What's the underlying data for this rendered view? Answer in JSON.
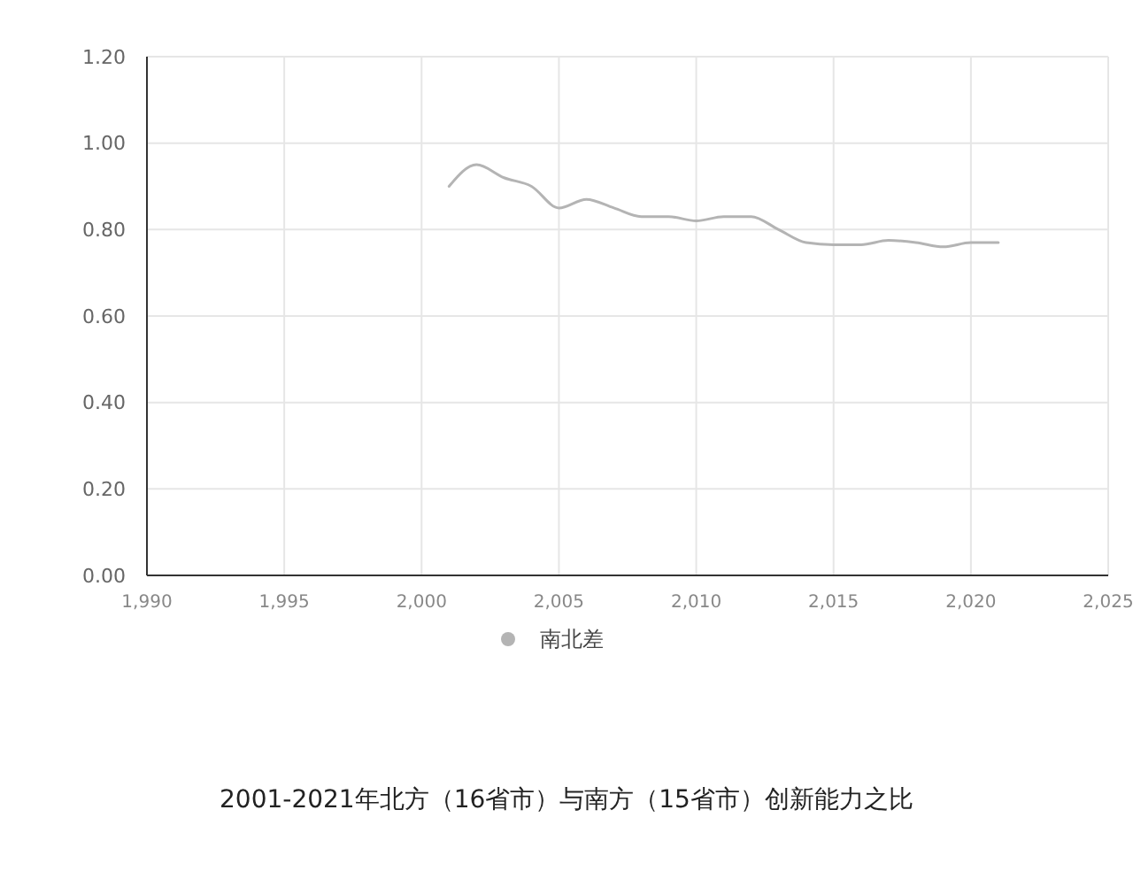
{
  "chart_data": {
    "type": "line",
    "title": "2001-2021年北方（16省市）与南方（15省市）创新能力之比",
    "x": [
      2001,
      2002,
      2003,
      2004,
      2005,
      2006,
      2007,
      2008,
      2009,
      2010,
      2011,
      2012,
      2013,
      2014,
      2015,
      2016,
      2017,
      2018,
      2019,
      2020,
      2021
    ],
    "series": [
      {
        "name": "南北差",
        "color": "#b4b4b4",
        "values": [
          0.9,
          0.95,
          0.92,
          0.9,
          0.85,
          0.87,
          0.85,
          0.83,
          0.83,
          0.82,
          0.83,
          0.83,
          0.8,
          0.77,
          0.765,
          0.765,
          0.775,
          0.77,
          0.76,
          0.77,
          0.77
        ]
      }
    ],
    "xlim": [
      1990,
      2025
    ],
    "xticks": [
      {
        "value": 1990,
        "label": "1,990"
      },
      {
        "value": 1995,
        "label": "1,995"
      },
      {
        "value": 2000,
        "label": "2,000"
      },
      {
        "value": 2005,
        "label": "2,005"
      },
      {
        "value": 2010,
        "label": "2,010"
      },
      {
        "value": 2015,
        "label": "2,015"
      },
      {
        "value": 2020,
        "label": "2,020"
      },
      {
        "value": 2025,
        "label": "2,025"
      }
    ],
    "ylim": [
      0,
      1.2
    ],
    "yticks": [
      {
        "value": 0,
        "label": "0.00"
      },
      {
        "value": 0.2,
        "label": "0.20"
      },
      {
        "value": 0.4,
        "label": "0.40"
      },
      {
        "value": 0.6,
        "label": "0.60"
      },
      {
        "value": 0.8,
        "label": "0.80"
      },
      {
        "value": 1,
        "label": "1.00"
      },
      {
        "value": 1.2,
        "label": "1.20"
      }
    ],
    "grid": true,
    "legend": "bottom",
    "marker": "none",
    "line_style": "solid"
  }
}
